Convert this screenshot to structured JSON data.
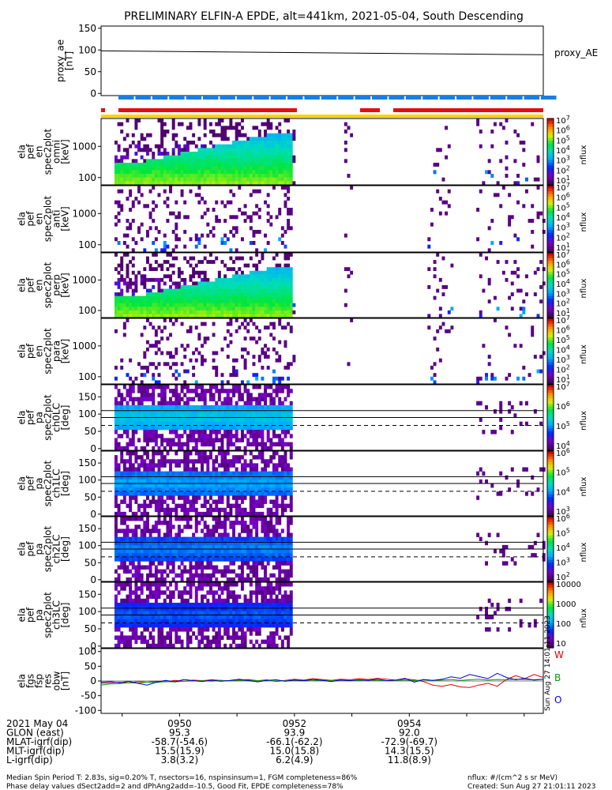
{
  "title": "PRELIMINARY ELFIN-A EPDE, alt=441km, 2021-05-04, South Descending",
  "chart_data": [
    {
      "type": "line",
      "ylabel": [
        "proxy_ae",
        "[nT]"
      ],
      "ylim": [
        -5,
        155
      ],
      "yticks": [
        "150",
        "100",
        "50",
        "0"
      ],
      "ytick_values": [
        150,
        100,
        50,
        0
      ],
      "x": [
        "09:48:38",
        "09:56:20"
      ],
      "series": [
        {
          "name": "proxy_AE",
          "values": [
            98,
            89
          ]
        }
      ]
    },
    {
      "type": "heatmap",
      "ylabel": [
        "ela",
        "pef",
        "en",
        "spec2plot",
        "omni",
        "[keV]"
      ],
      "yticks": [
        "1000",
        "100"
      ],
      "colorbar": {
        "label": "nflux",
        "ticks": [
          "10^7",
          "10^6",
          "10^5",
          "10^4",
          "10^3",
          "10^2",
          "10^1"
        ]
      }
    },
    {
      "type": "heatmap",
      "ylabel": [
        "ela",
        "pef",
        "en",
        "spec2plot",
        "anti",
        "[keV]"
      ],
      "yticks": [
        "1000",
        "100"
      ],
      "colorbar": {
        "label": "nflux",
        "ticks": [
          "10^7",
          "10^6",
          "10^5",
          "10^4",
          "10^3",
          "10^2",
          "10^1"
        ]
      }
    },
    {
      "type": "heatmap",
      "ylabel": [
        "ela",
        "pef",
        "en",
        "spec2plot",
        "perp",
        "[keV]"
      ],
      "yticks": [
        "1000",
        "100"
      ],
      "colorbar": {
        "label": "nflux",
        "ticks": [
          "10^7",
          "10^6",
          "10^5",
          "10^4",
          "10^3",
          "10^2",
          "10^1"
        ]
      }
    },
    {
      "type": "heatmap",
      "ylabel": [
        "ela",
        "pef",
        "en",
        "spec2plot",
        "para",
        "[keV]"
      ],
      "yticks": [
        "1000",
        "100"
      ],
      "colorbar": {
        "label": "nflux",
        "ticks": [
          "10^7",
          "10^6",
          "10^5",
          "10^4",
          "10^3",
          "10^2",
          "10^1"
        ]
      }
    },
    {
      "type": "heatmap",
      "ylabel": [
        "ela",
        "pef",
        "pa",
        "spec2plot",
        "ch0LC",
        "[deg]"
      ],
      "yticks": [
        "150",
        "100",
        "50",
        "0"
      ],
      "colorbar": {
        "label": "nflux",
        "ticks": [
          "10^7",
          "10^6",
          "10^5",
          "10^4"
        ]
      }
    },
    {
      "type": "heatmap",
      "ylabel": [
        "ela",
        "pef",
        "pa",
        "spec2plot",
        "ch1LC",
        "[deg]"
      ],
      "yticks": [
        "150",
        "100",
        "50",
        "0"
      ],
      "colorbar": {
        "label": "nflux",
        "ticks": [
          "10^6",
          "10^5",
          "10^4",
          "10^3"
        ]
      }
    },
    {
      "type": "heatmap",
      "ylabel": [
        "ela",
        "pef",
        "pa",
        "spec2plot",
        "ch2LC",
        "[deg]"
      ],
      "yticks": [
        "150",
        "100",
        "50",
        "0"
      ],
      "colorbar": {
        "label": "nflux",
        "ticks": [
          "10^6",
          "10^5",
          "10^4",
          "10^3",
          "10^2"
        ]
      }
    },
    {
      "type": "heatmap",
      "ylabel": [
        "ela",
        "pef",
        "pa",
        "spec2plot",
        "ch3LC",
        "[deg]"
      ],
      "yticks": [
        "150",
        "100",
        "50",
        "0"
      ],
      "colorbar": {
        "label": "nflux",
        "ticks": [
          "10000",
          "1000",
          "100",
          "10"
        ]
      }
    },
    {
      "type": "line",
      "ylabel": [
        "ela",
        "fgs",
        "fsp",
        "res",
        "obw",
        "[nT]"
      ],
      "ylim": [
        -110,
        110
      ],
      "yticks": [
        "100",
        "50",
        "0",
        "-50",
        "-100"
      ],
      "ytick_values": [
        100,
        50,
        0,
        -50,
        -100
      ],
      "series": [
        {
          "name": "W",
          "color": "#e00000",
          "values": [
            -8,
            -6,
            -4,
            -6,
            -2,
            -4,
            -1,
            -3,
            2,
            -1,
            3,
            1,
            4,
            2,
            0,
            3,
            5,
            1,
            4,
            -2,
            2,
            6,
            3,
            8,
            5,
            2,
            6,
            4,
            8,
            5,
            9,
            6,
            3,
            7,
            4,
            -2,
            -14,
            -18,
            -12,
            -20,
            -22,
            -14,
            -8,
            -18,
            5,
            18,
            8,
            22,
            12
          ]
        },
        {
          "name": "B",
          "color": "#00a000",
          "values": [
            -14,
            -10,
            -9,
            -6,
            -7,
            -4,
            -5,
            -2,
            -3,
            -1,
            0,
            1,
            -1,
            2,
            0,
            1,
            3,
            1,
            2,
            0,
            1,
            2,
            0,
            1,
            2,
            1,
            3,
            2,
            1,
            3,
            2,
            1,
            2,
            3,
            1,
            4,
            2,
            3,
            5,
            2,
            4,
            6,
            3,
            5,
            4,
            6,
            5,
            4,
            6
          ]
        },
        {
          "name": "O",
          "color": "#0000dd",
          "values": [
            -4,
            -2,
            -6,
            -1,
            -8,
            -14,
            -4,
            2,
            -3,
            5,
            1,
            -2,
            3,
            -1,
            2,
            6,
            1,
            -3,
            2,
            4,
            -1,
            3,
            1,
            5,
            2,
            -2,
            3,
            1,
            4,
            2,
            6,
            1,
            3,
            9,
            -4,
            5,
            2,
            6,
            14,
            9,
            22,
            15,
            8,
            26,
            12,
            4,
            9,
            3,
            6
          ]
        }
      ]
    }
  ],
  "time_labels": [
    "0950",
    "0952",
    "0954"
  ],
  "footer_rows": [
    {
      "label": "2021 May 04",
      "v": [
        "",
        "",
        ""
      ]
    },
    {
      "label": "GLON (east)",
      "v": [
        "95.3",
        "93.9",
        "92.0"
      ]
    },
    {
      "label": "MLAT-igrf(dip)",
      "v": [
        "-58.7(-54.6)",
        "-66.1(-62.2)",
        "-72.9(-69.7)"
      ]
    },
    {
      "label": "MLT-igrf(dip)",
      "v": [
        "15.5(15.9)",
        "15.0(15.8)",
        "14.3(15.5)"
      ]
    },
    {
      "label": "L-igrf(dip)",
      "v": [
        "3.8(3.2)",
        "6.2(4.9)",
        "11.8(8.9)"
      ]
    }
  ],
  "notes": {
    "line1": "Median Spin Period T: 2.83s, sig=0.20% T, nsectors=16, nspinsinsum=1, FGM completeness=86%",
    "line2": "Phase delay values dSect2add=2 and dPhAng2add=-10.5, Good Fit, EPDE completeness=78%",
    "right1": "nflux: #/(cm^2 s sr MeV)",
    "right2": "Created: Sun Aug 27 21:01:11 2023",
    "stamp": "Sun Aug 27 14:01:11 2023"
  }
}
